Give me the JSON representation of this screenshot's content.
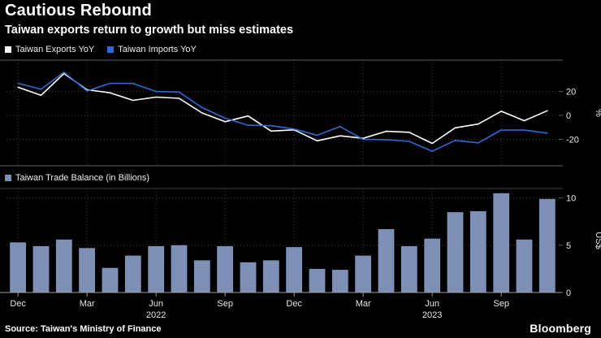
{
  "header": {
    "title": "Cautious Rebound",
    "subtitle": "Taiwan exports return to growth but miss estimates"
  },
  "colors": {
    "background": "#000000",
    "exports_line": "#ffffff",
    "imports_line": "#3169d5",
    "bars": "#7e90b5",
    "grid": "#3c3c3c",
    "frame": "#5f5f5f",
    "axis_text": "#e6e6e6"
  },
  "footer": {
    "source": "Source: Taiwan's Ministry of Finance",
    "logo": "Bloomberg"
  },
  "chart_data": [
    {
      "type": "line",
      "panel": "top",
      "legend": [
        {
          "label": "Taiwan Exports YoY",
          "color_key": "exports_line"
        },
        {
          "label": "Taiwan Imports YoY",
          "color_key": "imports_line"
        }
      ],
      "x": [
        "Dec 2021",
        "Jan 2022",
        "Feb 2022",
        "Mar 2022",
        "Apr 2022",
        "May 2022",
        "Jun 2022",
        "Jul 2022",
        "Aug 2022",
        "Sep 2022",
        "Oct 2022",
        "Nov 2022",
        "Dec 2022",
        "Jan 2023",
        "Feb 2023",
        "Mar 2023",
        "Apr 2023",
        "May 2023",
        "Jun 2023",
        "Jul 2023",
        "Aug 2023",
        "Sep 2023",
        "Oct 2023",
        "Nov 2023"
      ],
      "series": [
        {
          "name": "Taiwan Exports YoY",
          "color_key": "exports_line",
          "values": [
            23.4,
            16.7,
            34.8,
            21.3,
            18.8,
            12.5,
            15.2,
            14.2,
            2.0,
            -5.3,
            -0.5,
            -13.1,
            -12.1,
            -21.2,
            -17.1,
            -19.1,
            -13.3,
            -14.1,
            -23.4,
            -10.4,
            -7.3,
            3.4,
            -4.5,
            3.8
          ]
        },
        {
          "name": "Taiwan Imports YoY",
          "color_key": "imports_line",
          "values": [
            26.7,
            21.7,
            35.9,
            20.3,
            26.7,
            26.6,
            19.9,
            19.4,
            6.5,
            -2.4,
            -8.2,
            -8.6,
            -11.4,
            -16.6,
            -9.4,
            -20.1,
            -20.2,
            -21.7,
            -29.9,
            -20.9,
            -22.9,
            -12.2,
            -12.3,
            -14.8
          ]
        }
      ],
      "ylabel": "%",
      "ylim": [
        -42,
        46
      ],
      "yticks": [
        20,
        0,
        -20
      ],
      "grid": true,
      "legend_position": "top-left",
      "x_axis_ticks": {
        "indices": [
          0,
          3,
          6,
          9,
          12,
          15,
          18,
          21
        ],
        "labels": [
          "Dec",
          "Mar",
          "Jun",
          "Sep",
          "Dec",
          "Mar",
          "Jun",
          "Sep"
        ]
      },
      "year_labels": [
        {
          "label": "2022",
          "index": 6
        },
        {
          "label": "2023",
          "index": 18
        }
      ]
    },
    {
      "type": "bar",
      "panel": "bottom",
      "legend": [
        {
          "label": "Taiwan Trade Balance (in Billions)",
          "color_key": "bars"
        }
      ],
      "categories": [
        "Dec 2021",
        "Jan 2022",
        "Feb 2022",
        "Mar 2022",
        "Apr 2022",
        "May 2022",
        "Jun 2022",
        "Jul 2022",
        "Aug 2022",
        "Sep 2022",
        "Oct 2022",
        "Nov 2022",
        "Dec 2022",
        "Jan 2023",
        "Feb 2023",
        "Mar 2023",
        "Apr 2023",
        "May 2023",
        "Jun 2023",
        "Jul 2023",
        "Aug 2023",
        "Sep 2023",
        "Oct 2023",
        "Nov 2023"
      ],
      "values": [
        5.3,
        4.9,
        5.6,
        4.7,
        2.6,
        3.9,
        4.9,
        5.0,
        3.4,
        4.9,
        3.2,
        3.4,
        4.8,
        2.5,
        2.4,
        3.9,
        6.7,
        4.9,
        5.7,
        8.5,
        8.6,
        10.5,
        5.6,
        9.9
      ],
      "ylabel": "US$",
      "ylim": [
        0,
        11
      ],
      "yticks": [
        10,
        5,
        0
      ],
      "grid": true
    }
  ]
}
